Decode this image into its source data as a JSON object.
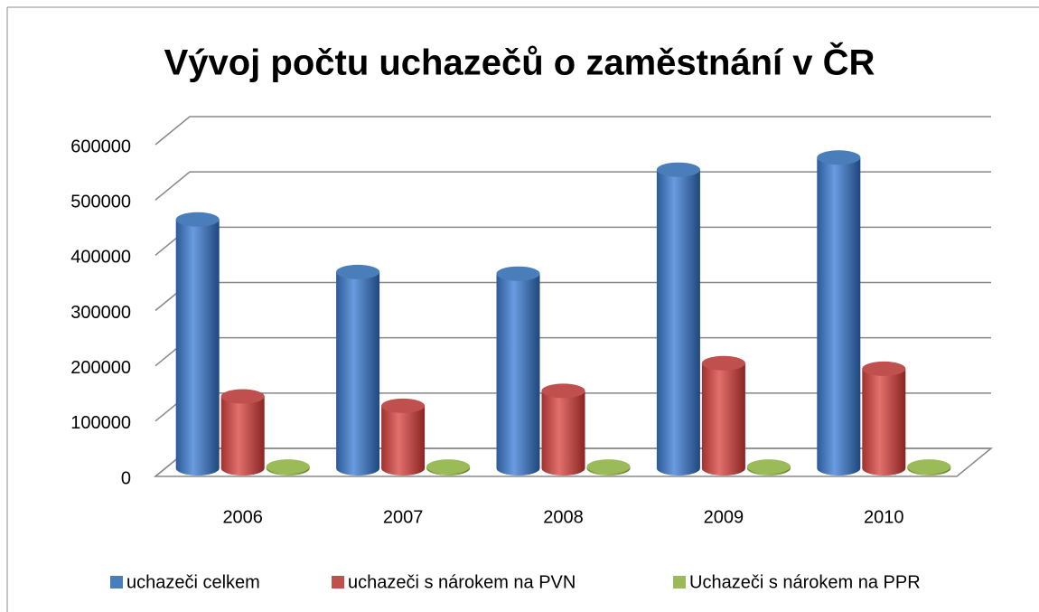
{
  "chart_data": {
    "type": "bar",
    "title": "Vývoj počtu uchazečů o zaměstnání v ČR",
    "categories": [
      "2006",
      "2007",
      "2008",
      "2009",
      "2010"
    ],
    "series": [
      {
        "name": "uchazeči celkem",
        "color": "#4a7ebb",
        "values": [
          450000,
          355000,
          352000,
          540000,
          562000
        ]
      },
      {
        "name": "uchazeči s nárokem na PVN",
        "color": "#c0504d",
        "values": [
          130000,
          113000,
          140000,
          190000,
          180000
        ]
      },
      {
        "name": "Uchazeči s nárokem na PPR",
        "color": "#9bbb59",
        "values": [
          3000,
          3000,
          3000,
          3000,
          3000
        ]
      }
    ],
    "ylim": [
      0,
      600000
    ],
    "yticks": [
      0,
      100000,
      200000,
      300000,
      400000,
      500000,
      600000
    ],
    "grid": true,
    "legend": "bottom"
  }
}
